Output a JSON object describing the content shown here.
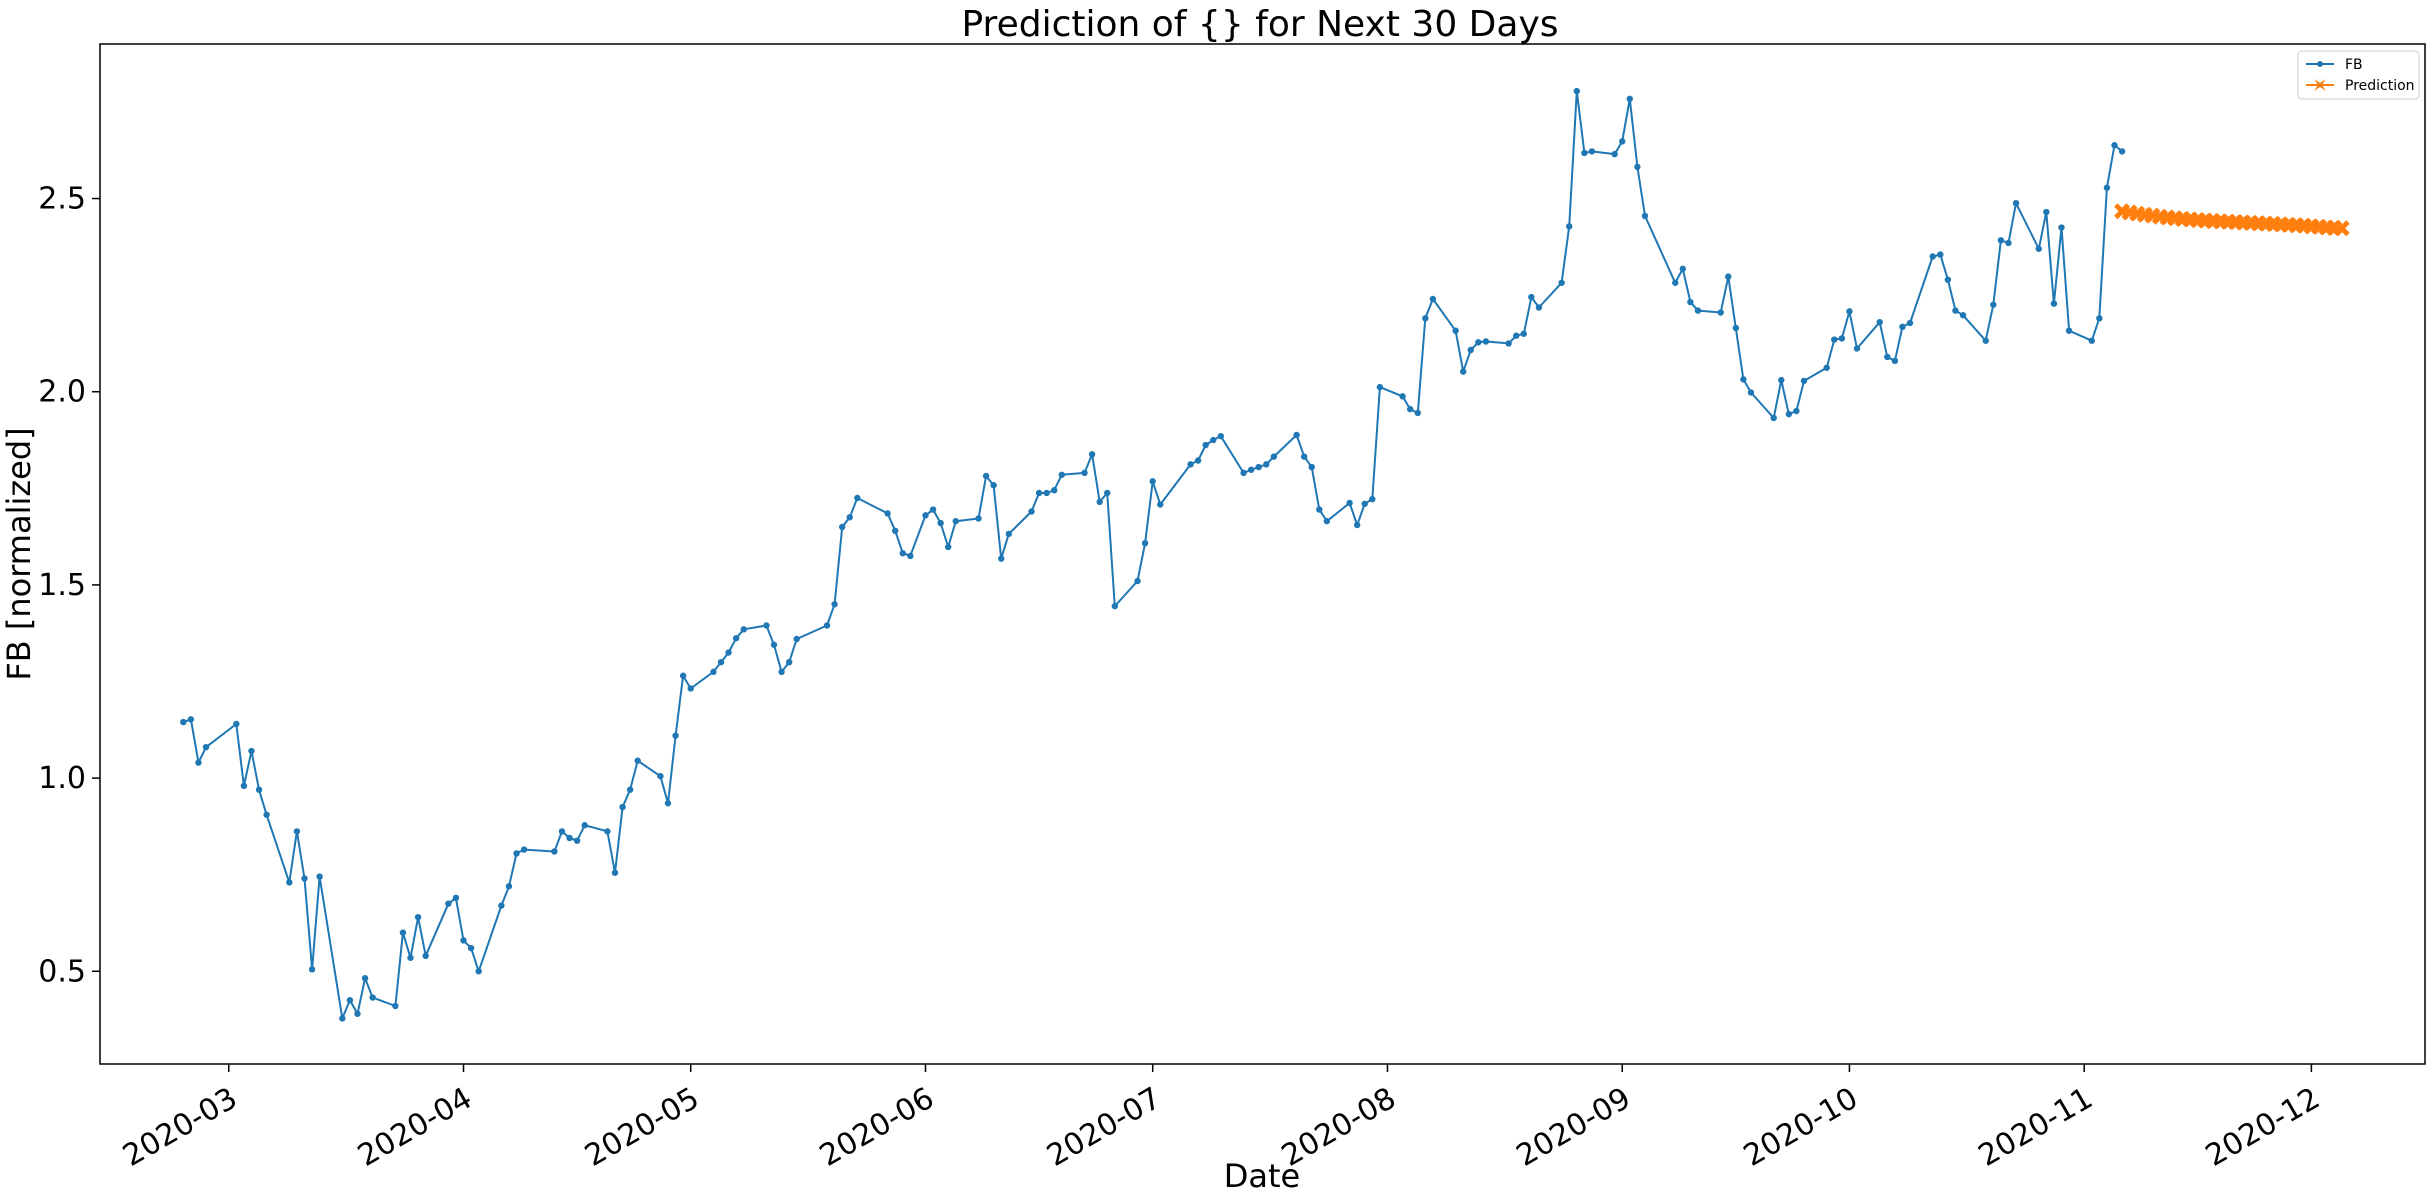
{
  "chart_data": {
    "type": "line",
    "title": "Prediction of {} for Next 30 Days",
    "xlabel": "Date",
    "ylabel": "FB [normalized]",
    "x_ticks": [
      "2020-03-01",
      "2020-04-01",
      "2020-05-01",
      "2020-06-01",
      "2020-07-01",
      "2020-08-01",
      "2020-09-01",
      "2020-10-01",
      "2020-11-01",
      "2020-12-01"
    ],
    "x_tick_labels": [
      "2020-03",
      "2020-04",
      "2020-05",
      "2020-06",
      "2020-07",
      "2020-08",
      "2020-09",
      "2020-10",
      "2020-11",
      "2020-12"
    ],
    "xlim": [
      "2020-02-13",
      "2020-12-16"
    ],
    "y_ticks": [
      0.5,
      1.0,
      1.5,
      2.0,
      2.5
    ],
    "y_tick_labels": [
      "0.5",
      "1.0",
      "1.5",
      "2.0",
      "2.5"
    ],
    "ylim": [
      0.26,
      2.9
    ],
    "grid": false,
    "legend": {
      "placement": "top-right",
      "entries": [
        "FB",
        "Prediction"
      ]
    },
    "colors": {
      "FB": "#1f77b4",
      "Prediction": "#ff7f0e"
    },
    "series": [
      {
        "name": "FB",
        "marker": "dot",
        "points": [
          [
            "2020-02-24",
            1.145
          ],
          [
            "2020-02-25",
            1.152
          ],
          [
            "2020-02-26",
            1.04
          ],
          [
            "2020-02-27",
            1.08
          ],
          [
            "2020-03-02",
            1.14
          ],
          [
            "2020-03-03",
            0.98
          ],
          [
            "2020-03-04",
            1.07
          ],
          [
            "2020-03-05",
            0.97
          ],
          [
            "2020-03-06",
            0.905
          ],
          [
            "2020-03-09",
            0.73
          ],
          [
            "2020-03-10",
            0.862
          ],
          [
            "2020-03-11",
            0.74
          ],
          [
            "2020-03-12",
            0.505
          ],
          [
            "2020-03-13",
            0.745
          ],
          [
            "2020-03-16",
            0.378
          ],
          [
            "2020-03-17",
            0.425
          ],
          [
            "2020-03-18",
            0.39
          ],
          [
            "2020-03-19",
            0.482
          ],
          [
            "2020-03-20",
            0.432
          ],
          [
            "2020-03-23",
            0.41
          ],
          [
            "2020-03-24",
            0.6
          ],
          [
            "2020-03-25",
            0.535
          ],
          [
            "2020-03-26",
            0.64
          ],
          [
            "2020-03-27",
            0.54
          ],
          [
            "2020-03-30",
            0.675
          ],
          [
            "2020-03-31",
            0.69
          ],
          [
            "2020-04-01",
            0.58
          ],
          [
            "2020-04-02",
            0.56
          ],
          [
            "2020-04-03",
            0.5
          ],
          [
            "2020-04-06",
            0.67
          ],
          [
            "2020-04-07",
            0.72
          ],
          [
            "2020-04-08",
            0.805
          ],
          [
            "2020-04-09",
            0.815
          ],
          [
            "2020-04-13",
            0.81
          ],
          [
            "2020-04-14",
            0.862
          ],
          [
            "2020-04-15",
            0.845
          ],
          [
            "2020-04-16",
            0.838
          ],
          [
            "2020-04-17",
            0.878
          ],
          [
            "2020-04-20",
            0.862
          ],
          [
            "2020-04-21",
            0.755
          ],
          [
            "2020-04-22",
            0.925
          ],
          [
            "2020-04-23",
            0.97
          ],
          [
            "2020-04-24",
            1.045
          ],
          [
            "2020-04-27",
            1.005
          ],
          [
            "2020-04-28",
            0.935
          ],
          [
            "2020-04-29",
            1.11
          ],
          [
            "2020-04-30",
            1.265
          ],
          [
            "2020-05-01",
            1.232
          ],
          [
            "2020-05-04",
            1.275
          ],
          [
            "2020-05-05",
            1.3
          ],
          [
            "2020-05-06",
            1.325
          ],
          [
            "2020-05-07",
            1.362
          ],
          [
            "2020-05-08",
            1.385
          ],
          [
            "2020-05-11",
            1.395
          ],
          [
            "2020-05-12",
            1.345
          ],
          [
            "2020-05-13",
            1.275
          ],
          [
            "2020-05-14",
            1.3
          ],
          [
            "2020-05-15",
            1.36
          ],
          [
            "2020-05-19",
            1.395
          ],
          [
            "2020-05-20",
            1.45
          ],
          [
            "2020-05-21",
            1.65
          ],
          [
            "2020-05-22",
            1.675
          ],
          [
            "2020-05-23",
            1.725
          ],
          [
            "2020-05-27",
            1.685
          ],
          [
            "2020-05-28",
            1.64
          ],
          [
            "2020-05-29",
            1.582
          ],
          [
            "2020-05-30",
            1.575
          ],
          [
            "2020-06-01",
            1.68
          ],
          [
            "2020-06-02",
            1.695
          ],
          [
            "2020-06-03",
            1.66
          ],
          [
            "2020-06-04",
            1.598
          ],
          [
            "2020-06-05",
            1.665
          ],
          [
            "2020-06-08",
            1.672
          ],
          [
            "2020-06-09",
            1.782
          ],
          [
            "2020-06-10",
            1.758
          ],
          [
            "2020-06-11",
            1.568
          ],
          [
            "2020-06-12",
            1.632
          ],
          [
            "2020-06-15",
            1.69
          ],
          [
            "2020-06-16",
            1.738
          ],
          [
            "2020-06-17",
            1.738
          ],
          [
            "2020-06-18",
            1.745
          ],
          [
            "2020-06-19",
            1.785
          ],
          [
            "2020-06-22",
            1.79
          ],
          [
            "2020-06-23",
            1.838
          ],
          [
            "2020-06-24",
            1.715
          ],
          [
            "2020-06-25",
            1.738
          ],
          [
            "2020-06-26",
            1.445
          ],
          [
            "2020-06-29",
            1.51
          ],
          [
            "2020-06-30",
            1.608
          ],
          [
            "2020-07-01",
            1.768
          ],
          [
            "2020-07-02",
            1.708
          ],
          [
            "2020-07-06",
            1.812
          ],
          [
            "2020-07-07",
            1.822
          ],
          [
            "2020-07-08",
            1.862
          ],
          [
            "2020-07-09",
            1.875
          ],
          [
            "2020-07-10",
            1.885
          ],
          [
            "2020-07-13",
            1.79
          ],
          [
            "2020-07-14",
            1.798
          ],
          [
            "2020-07-15",
            1.805
          ],
          [
            "2020-07-16",
            1.812
          ],
          [
            "2020-07-17",
            1.832
          ],
          [
            "2020-07-20",
            1.888
          ],
          [
            "2020-07-21",
            1.832
          ],
          [
            "2020-07-22",
            1.805
          ],
          [
            "2020-07-23",
            1.695
          ],
          [
            "2020-07-24",
            1.665
          ],
          [
            "2020-07-27",
            1.712
          ],
          [
            "2020-07-28",
            1.655
          ],
          [
            "2020-07-29",
            1.71
          ],
          [
            "2020-07-30",
            1.722
          ],
          [
            "2020-07-31",
            2.012
          ],
          [
            "2020-08-03",
            1.988
          ],
          [
            "2020-08-04",
            1.955
          ],
          [
            "2020-08-05",
            1.945
          ],
          [
            "2020-08-06",
            2.19
          ],
          [
            "2020-08-07",
            2.24
          ],
          [
            "2020-08-10",
            2.158
          ],
          [
            "2020-08-11",
            2.052
          ],
          [
            "2020-08-12",
            2.108
          ],
          [
            "2020-08-13",
            2.128
          ],
          [
            "2020-08-14",
            2.13
          ],
          [
            "2020-08-17",
            2.125
          ],
          [
            "2020-08-18",
            2.145
          ],
          [
            "2020-08-19",
            2.15
          ],
          [
            "2020-08-20",
            2.245
          ],
          [
            "2020-08-21",
            2.218
          ],
          [
            "2020-08-24",
            2.282
          ],
          [
            "2020-08-25",
            2.428
          ],
          [
            "2020-08-26",
            2.778
          ],
          [
            "2020-08-27",
            2.618
          ],
          [
            "2020-08-28",
            2.622
          ],
          [
            "2020-08-31",
            2.615
          ],
          [
            "2020-09-01",
            2.648
          ],
          [
            "2020-09-02",
            2.758
          ],
          [
            "2020-09-03",
            2.582
          ],
          [
            "2020-09-04",
            2.455
          ],
          [
            "2020-09-08",
            2.282
          ],
          [
            "2020-09-09",
            2.318
          ],
          [
            "2020-09-10",
            2.232
          ],
          [
            "2020-09-11",
            2.21
          ],
          [
            "2020-09-14",
            2.205
          ],
          [
            "2020-09-15",
            2.298
          ],
          [
            "2020-09-16",
            2.165
          ],
          [
            "2020-09-17",
            2.032
          ],
          [
            "2020-09-18",
            1.998
          ],
          [
            "2020-09-21",
            1.932
          ],
          [
            "2020-09-22",
            2.03
          ],
          [
            "2020-09-23",
            1.942
          ],
          [
            "2020-09-24",
            1.95
          ],
          [
            "2020-09-25",
            2.028
          ],
          [
            "2020-09-28",
            2.062
          ],
          [
            "2020-09-29",
            2.135
          ],
          [
            "2020-09-30",
            2.138
          ],
          [
            "2020-10-01",
            2.208
          ],
          [
            "2020-10-02",
            2.112
          ],
          [
            "2020-10-05",
            2.18
          ],
          [
            "2020-10-06",
            2.09
          ],
          [
            "2020-10-07",
            2.08
          ],
          [
            "2020-10-08",
            2.168
          ],
          [
            "2020-10-09",
            2.178
          ],
          [
            "2020-10-12",
            2.35
          ],
          [
            "2020-10-13",
            2.355
          ],
          [
            "2020-10-14",
            2.29
          ],
          [
            "2020-10-15",
            2.21
          ],
          [
            "2020-10-16",
            2.198
          ],
          [
            "2020-10-19",
            2.132
          ],
          [
            "2020-10-20",
            2.225
          ],
          [
            "2020-10-21",
            2.392
          ],
          [
            "2020-10-22",
            2.385
          ],
          [
            "2020-10-23",
            2.488
          ],
          [
            "2020-10-26",
            2.37
          ],
          [
            "2020-10-27",
            2.465
          ],
          [
            "2020-10-28",
            2.228
          ],
          [
            "2020-10-29",
            2.425
          ],
          [
            "2020-10-30",
            2.158
          ],
          [
            "2020-11-02",
            2.132
          ],
          [
            "2020-11-03",
            2.19
          ],
          [
            "2020-11-04",
            2.528
          ],
          [
            "2020-11-05",
            2.638
          ],
          [
            "2020-11-06",
            2.622
          ]
        ]
      },
      {
        "name": "Prediction",
        "marker": "x-filled",
        "points": [
          [
            "2020-11-06",
            2.467
          ],
          [
            "2020-11-07",
            2.464
          ],
          [
            "2020-11-08",
            2.461
          ],
          [
            "2020-11-09",
            2.458
          ],
          [
            "2020-11-10",
            2.456
          ],
          [
            "2020-11-11",
            2.453
          ],
          [
            "2020-11-12",
            2.451
          ],
          [
            "2020-11-13",
            2.449
          ],
          [
            "2020-11-14",
            2.447
          ],
          [
            "2020-11-15",
            2.446
          ],
          [
            "2020-11-16",
            2.444
          ],
          [
            "2020-11-17",
            2.443
          ],
          [
            "2020-11-18",
            2.442
          ],
          [
            "2020-11-19",
            2.441
          ],
          [
            "2020-11-20",
            2.44
          ],
          [
            "2020-11-21",
            2.439
          ],
          [
            "2020-11-22",
            2.438
          ],
          [
            "2020-11-23",
            2.437
          ],
          [
            "2020-11-24",
            2.436
          ],
          [
            "2020-11-25",
            2.435
          ],
          [
            "2020-11-26",
            2.434
          ],
          [
            "2020-11-27",
            2.433
          ],
          [
            "2020-11-28",
            2.432
          ],
          [
            "2020-11-29",
            2.431
          ],
          [
            "2020-11-30",
            2.43
          ],
          [
            "2020-12-01",
            2.428
          ],
          [
            "2020-12-02",
            2.427
          ],
          [
            "2020-12-03",
            2.425
          ],
          [
            "2020-12-04",
            2.424
          ],
          [
            "2020-12-05",
            2.423
          ]
        ]
      }
    ]
  }
}
